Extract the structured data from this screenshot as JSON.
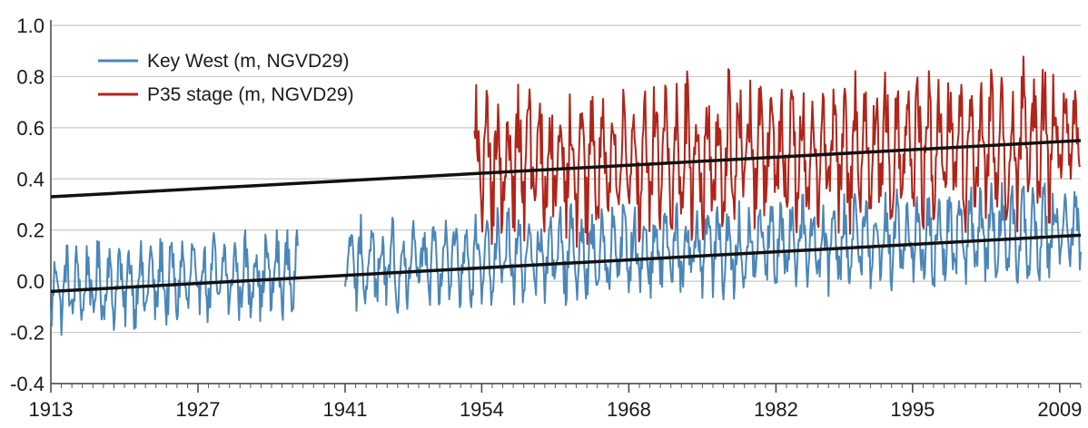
{
  "chart_data": {
    "type": "line",
    "title": "",
    "xlabel": "",
    "ylabel": "",
    "xlim": [
      1913,
      2011
    ],
    "ylim": [
      -0.4,
      1.0
    ],
    "grid": "horizontal",
    "legend_position": "top-left",
    "x_ticks": [
      "1913",
      "1927",
      "1941",
      "1954",
      "1968",
      "1982",
      "1995",
      "2009"
    ],
    "y_ticks": [
      "1.0",
      "0.8",
      "0.6",
      "0.4",
      "0.2",
      "0.0",
      "-0.2",
      "-0.4"
    ],
    "series": [
      {
        "name": "Key West (m, NGVD29)",
        "color": "#4a86b8",
        "segments": [
          {
            "x_start": 1913.0,
            "x_end": 1936.5,
            "baseline_start": -0.03,
            "baseline_end": 0.03,
            "amplitude": 0.11,
            "min": -0.23,
            "max": 0.2
          },
          {
            "x_start": 1941.0,
            "x_end": 2011.0,
            "baseline_start": 0.06,
            "baseline_end": 0.2,
            "amplitude": 0.12,
            "min": -0.13,
            "max": 0.43
          }
        ]
      },
      {
        "name": "P35 stage (m, NGVD29)",
        "color": "#b02419",
        "segments": [
          {
            "x_start": 1953.3,
            "x_end": 2011.0,
            "baseline_start": 0.45,
            "baseline_end": 0.55,
            "amplitude": 0.2,
            "min": 0.08,
            "max": 1.0
          }
        ]
      }
    ],
    "trend_lines": [
      {
        "series": "P35 stage (m, NGVD29)",
        "color": "#111111",
        "points": [
          [
            1913,
            0.33
          ],
          [
            2011,
            0.55
          ]
        ]
      },
      {
        "series": "Key West (m, NGVD29)",
        "color": "#111111",
        "points": [
          [
            1913,
            -0.04
          ],
          [
            2011,
            0.18
          ]
        ]
      }
    ]
  }
}
